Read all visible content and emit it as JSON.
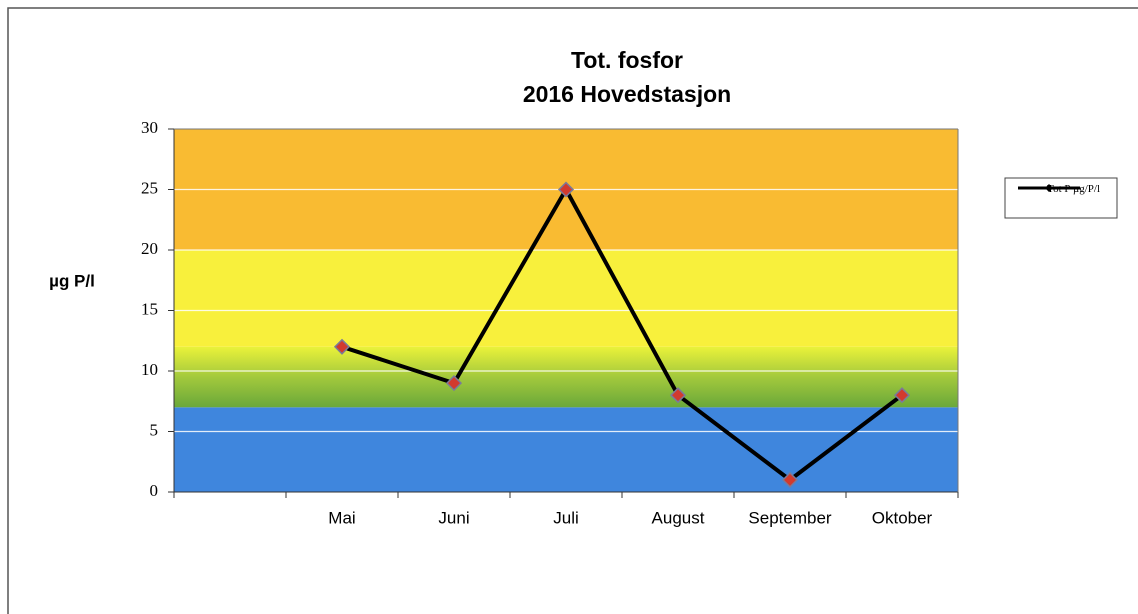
{
  "chart_data": {
    "type": "line",
    "title": "Tot. fosfor",
    "subtitle": "2016 Hovedstasjon",
    "y_label": "µg P/l",
    "categories": [
      null,
      "Mai",
      "Juni",
      "Juli",
      "August",
      "September",
      "Oktober"
    ],
    "series": [
      {
        "name": "Tot P µg/P/l",
        "color": "#000000",
        "marker_color": "#d23a2e",
        "values": [
          null,
          12,
          9,
          25,
          8,
          1,
          8
        ]
      }
    ],
    "ylim": [
      0,
      30
    ],
    "yticks": [
      0,
      5,
      10,
      15,
      20,
      25,
      30
    ],
    "grid": true,
    "background_bands": [
      {
        "from": 0,
        "to": 7,
        "color": "#3f86dd"
      },
      {
        "from": 7,
        "to": 12,
        "color": "#9cc63a"
      },
      {
        "from": 12,
        "to": 20,
        "color": "#f8f03c"
      },
      {
        "from": 20,
        "to": 30,
        "color": "#f9bb32"
      }
    ],
    "legend": "right"
  }
}
